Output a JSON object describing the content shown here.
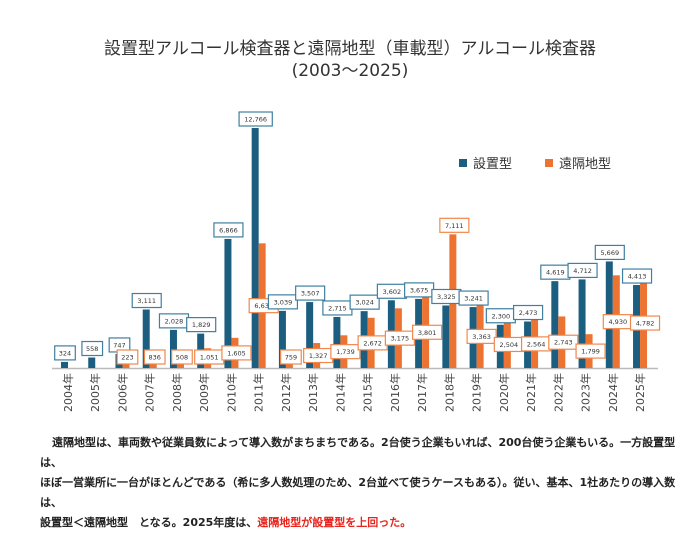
{
  "chart_data": {
    "type": "bar",
    "title": "設置型アルコール検査器と遠隔地型（車載型）アルコール検査器",
    "subtitle": "(2003～2025)",
    "categories": [
      "2004年",
      "2005年",
      "2006年",
      "2007年",
      "2008年",
      "2009年",
      "2010年",
      "2011年",
      "2012年",
      "2013年",
      "2014年",
      "2015年",
      "2016年",
      "2017年",
      "2018年",
      "2019年",
      "2020年",
      "2021年",
      "2022年",
      "2023年",
      "2024年",
      "2025年"
    ],
    "series": [
      {
        "name": "設置型",
        "color": "#1b5e80",
        "values": [
          324,
          558,
          747,
          3111,
          2028,
          1829,
          6866,
          12766,
          3039,
          3507,
          2715,
          3024,
          3602,
          3675,
          3325,
          3241,
          2300,
          2473,
          4619,
          4712,
          5669,
          4413
        ]
      },
      {
        "name": "遠隔地型",
        "color": "#ed7332",
        "values": [
          null,
          null,
          223,
          836,
          508,
          1051,
          1605,
          6632,
          759,
          1327,
          1739,
          2672,
          3175,
          3801,
          7111,
          3363,
          2504,
          2564,
          2743,
          1799,
          4930,
          4782
        ]
      }
    ],
    "data_labels": true,
    "ylim": [
      0,
      13000
    ],
    "grid": false,
    "legend": "top-right"
  },
  "note": {
    "line1": "遠隔地型は、車両数や従業員数によって導入数がまちまちである。2台使う企業もいれば、200台使う企業もいる。一方設置型は、",
    "line2": "ほぼ一営業所に一台がほとんどである（希に多人数処理のため、2台並べて使うケースもある）。従い、基本、1社あたりの導入数は、",
    "line3_prefix": "設置型＜遠隔地型　となる。2025年度は、",
    "line3_highlight": "遠隔地型が設置型を上回った。"
  }
}
